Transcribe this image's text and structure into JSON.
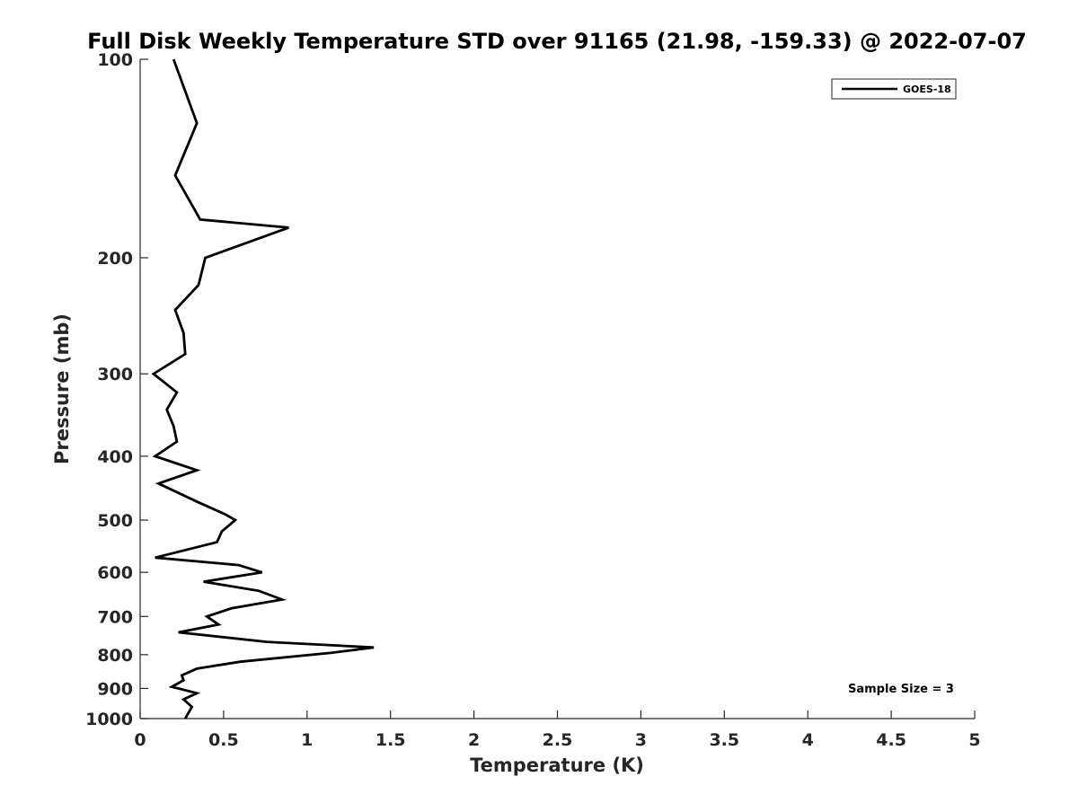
{
  "chart_data": {
    "type": "line",
    "title": "Full Disk Weekly Temperature STD over 91165 (21.98, -159.33) @ 2022-07-07",
    "xlabel": "Temperature (K)",
    "ylabel": "Pressure (mb)",
    "xlim": [
      0,
      5
    ],
    "ylim": [
      100,
      1000
    ],
    "y_scale": "log",
    "y_reversed": true,
    "grid": false,
    "x_ticks": [
      "0",
      "0.5",
      "1",
      "1.5",
      "2",
      "2.5",
      "3",
      "3.5",
      "4",
      "4.5",
      "5"
    ],
    "y_ticks": [
      "100",
      "200",
      "300",
      "400",
      "500",
      "600",
      "700",
      "800",
      "900",
      "1000"
    ],
    "legend": {
      "placement": "top-right",
      "entries": [
        "GOES-18"
      ]
    },
    "annotation": "Sample Size = 3",
    "series": [
      {
        "name": "GOES-18",
        "color": "#000000",
        "points": [
          [
            0.2,
            100
          ],
          [
            0.34,
            125
          ],
          [
            0.21,
            150
          ],
          [
            0.36,
            175
          ],
          [
            0.89,
            180
          ],
          [
            0.39,
            200
          ],
          [
            0.35,
            220
          ],
          [
            0.21,
            240
          ],
          [
            0.26,
            260
          ],
          [
            0.27,
            280
          ],
          [
            0.08,
            300
          ],
          [
            0.22,
            320
          ],
          [
            0.16,
            340
          ],
          [
            0.2,
            360
          ],
          [
            0.22,
            380
          ],
          [
            0.09,
            400
          ],
          [
            0.34,
            420
          ],
          [
            0.11,
            440
          ],
          [
            0.35,
            470
          ],
          [
            0.51,
            490
          ],
          [
            0.57,
            500
          ],
          [
            0.49,
            520
          ],
          [
            0.46,
            540
          ],
          [
            0.09,
            570
          ],
          [
            0.59,
            585
          ],
          [
            0.73,
            600
          ],
          [
            0.38,
            620
          ],
          [
            0.71,
            640
          ],
          [
            0.85,
            660
          ],
          [
            0.55,
            680
          ],
          [
            0.4,
            700
          ],
          [
            0.47,
            720
          ],
          [
            0.23,
            740
          ],
          [
            0.76,
            765
          ],
          [
            1.4,
            780
          ],
          [
            1.14,
            795
          ],
          [
            0.6,
            820
          ],
          [
            0.34,
            840
          ],
          [
            0.25,
            860
          ],
          [
            0.26,
            875
          ],
          [
            0.19,
            895
          ],
          [
            0.34,
            915
          ],
          [
            0.26,
            935
          ],
          [
            0.31,
            960
          ],
          [
            0.27,
            1000
          ]
        ]
      }
    ]
  }
}
